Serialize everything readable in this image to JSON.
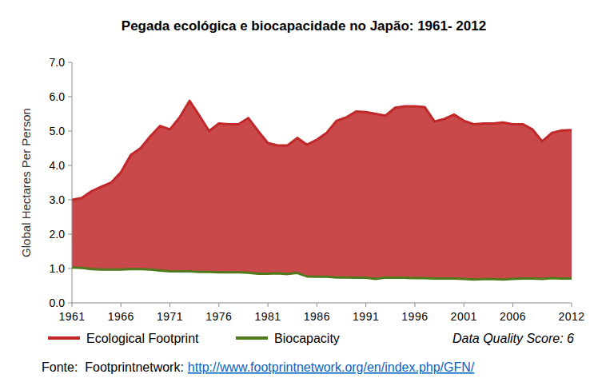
{
  "chart_data": {
    "type": "area",
    "title": "Pegada ecológica e biocapacidade no Japão: 1961- 2012",
    "y_label": "Global Hectares Per Person",
    "annotations": [
      "Data Quality Score: 6"
    ],
    "source": "Fonte:  Footprintnetwork:",
    "source_url": "http://www.footprintnetwork.org/en/index.php/GFN/",
    "x": [
      1961,
      1962,
      1963,
      1964,
      1965,
      1966,
      1967,
      1968,
      1969,
      1970,
      1971,
      1972,
      1973,
      1974,
      1975,
      1976,
      1977,
      1978,
      1979,
      1980,
      1981,
      1982,
      1983,
      1984,
      1985,
      1986,
      1987,
      1988,
      1989,
      1990,
      1991,
      1992,
      1993,
      1994,
      1995,
      1996,
      1997,
      1998,
      1999,
      2000,
      2001,
      2002,
      2003,
      2004,
      2005,
      2006,
      2007,
      2008,
      2009,
      2010,
      2011,
      2012
    ],
    "series": [
      {
        "name": "Ecological Footprint",
        "color": "#c0282a",
        "values": [
          3.0,
          3.05,
          3.25,
          3.38,
          3.5,
          3.8,
          4.3,
          4.5,
          4.85,
          5.15,
          5.05,
          5.4,
          5.88,
          5.45,
          5.0,
          5.22,
          5.2,
          5.2,
          5.38,
          5.0,
          4.65,
          4.58,
          4.58,
          4.8,
          4.6,
          4.75,
          4.95,
          5.3,
          5.4,
          5.57,
          5.55,
          5.5,
          5.45,
          5.68,
          5.72,
          5.72,
          5.7,
          5.28,
          5.35,
          5.48,
          5.3,
          5.2,
          5.22,
          5.22,
          5.25,
          5.2,
          5.2,
          5.05,
          4.7,
          4.95,
          5.02,
          5.03
        ]
      },
      {
        "name": "Biocapacity",
        "color": "#4f7a1c",
        "values": [
          1.03,
          1.02,
          0.98,
          0.97,
          0.97,
          0.97,
          0.98,
          0.98,
          0.97,
          0.94,
          0.92,
          0.92,
          0.92,
          0.9,
          0.9,
          0.89,
          0.89,
          0.89,
          0.88,
          0.85,
          0.85,
          0.86,
          0.84,
          0.87,
          0.77,
          0.76,
          0.76,
          0.74,
          0.74,
          0.73,
          0.73,
          0.7,
          0.74,
          0.73,
          0.73,
          0.72,
          0.72,
          0.71,
          0.71,
          0.71,
          0.7,
          0.68,
          0.69,
          0.69,
          0.68,
          0.7,
          0.71,
          0.71,
          0.7,
          0.72,
          0.71,
          0.71
        ]
      }
    ],
    "xlim": [
      1961,
      2012
    ],
    "xticks": [
      1961,
      1966,
      1971,
      1976,
      1981,
      1986,
      1991,
      1996,
      2001,
      2006,
      2012
    ],
    "ylim": [
      0,
      7
    ],
    "yticks": [
      {
        "value": 0,
        "label": "0.0"
      },
      {
        "value": 1,
        "label": "1.0"
      },
      {
        "value": 2,
        "label": "2.0"
      },
      {
        "value": 3,
        "label": "3.0"
      },
      {
        "value": 4,
        "label": "4.0"
      },
      {
        "value": 5,
        "label": "5.0"
      },
      {
        "value": 6,
        "label": "6.0"
      },
      {
        "value": 7,
        "label": "7.0"
      }
    ],
    "grid": false,
    "legend": "bottom"
  }
}
